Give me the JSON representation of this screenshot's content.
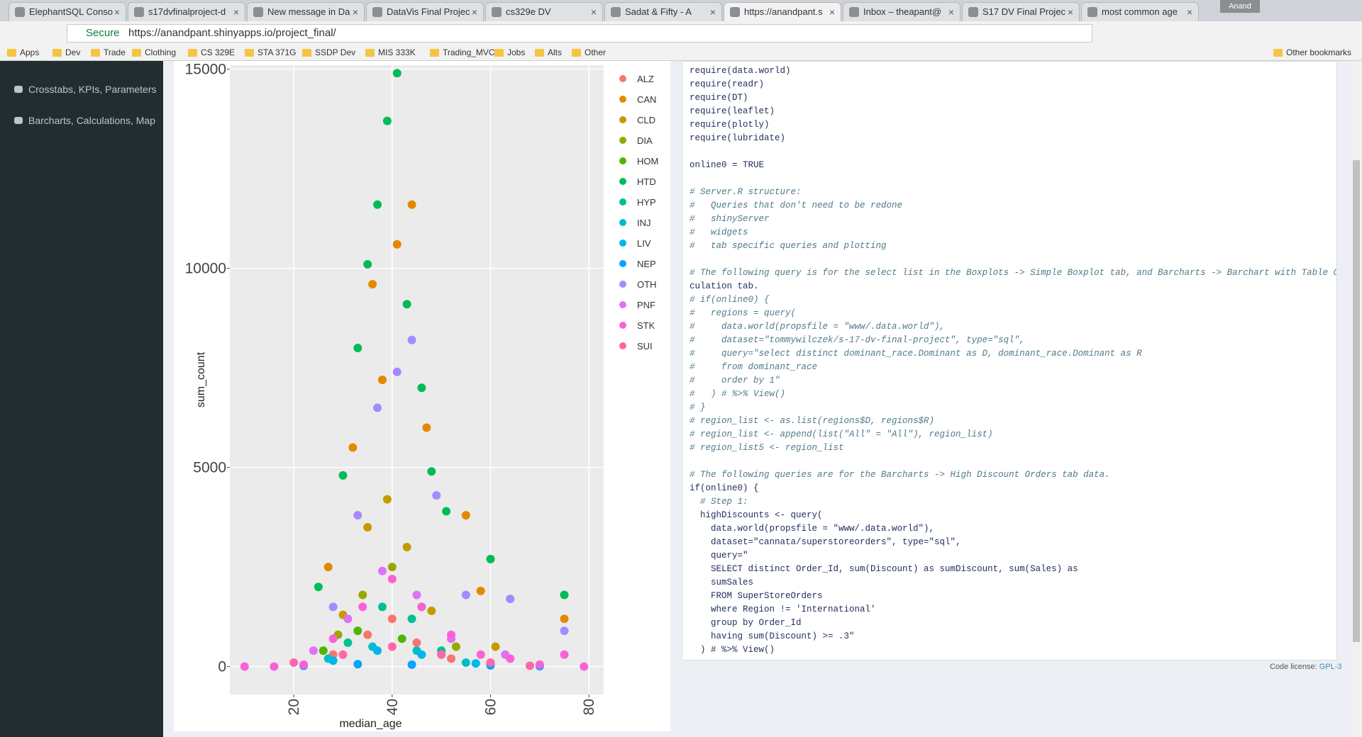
{
  "browser": {
    "tabs": [
      "ElephantSQL Conso",
      "s17dvfinalproject-d",
      "New message in Da",
      "DataVis Final Projec",
      "cs329e DV",
      "Sadat & Fifty - A",
      "https://anandpant.s",
      "Inbox – theapant@",
      "S17 DV Final Projec",
      "most common age"
    ],
    "profile": "Anand",
    "secure": "Secure",
    "url": "https://anandpant.shinyapps.io/project_final/",
    "bookmarks": [
      "Apps",
      "Dev",
      "Trade",
      "Clothing",
      "CS 329E",
      "STA 371G",
      "SSDP Dev",
      "MIS 333K",
      "Trading_MVC",
      "Jobs",
      "Alts",
      "Other"
    ],
    "other_bookmarks": "Other bookmarks"
  },
  "sidebar": {
    "items": [
      "Crosstabs, KPIs, Parameters",
      "Barcharts, Calculations, Map"
    ]
  },
  "chart_data": {
    "type": "scatter",
    "x_label": "median_age",
    "y_label": "sum_count",
    "xlim": [
      7,
      83
    ],
    "ylim": [
      -700,
      15100
    ],
    "xticks": [
      20,
      40,
      60,
      80
    ],
    "yticks": [
      0,
      5000,
      10000,
      15000
    ],
    "grid": true,
    "series": [
      {
        "name": "ALZ",
        "color": "#F8766D",
        "x": [
          28,
          35,
          40,
          45,
          52
        ],
        "values": [
          300,
          800,
          1200,
          600,
          200
        ]
      },
      {
        "name": "CAN",
        "color": "#E38900",
        "x": [
          27,
          32,
          36,
          38,
          41,
          44,
          47,
          55,
          58,
          75
        ],
        "values": [
          2500,
          5500,
          9600,
          7200,
          10600,
          11600,
          6000,
          3800,
          1900,
          1200
        ]
      },
      {
        "name": "CLD",
        "color": "#C49A00",
        "x": [
          30,
          35,
          39,
          43,
          48,
          61
        ],
        "values": [
          1300,
          3500,
          4200,
          3000,
          1400,
          500
        ]
      },
      {
        "name": "DIA",
        "color": "#99A800",
        "x": [
          29,
          34,
          40,
          46,
          53
        ],
        "values": [
          800,
          1800,
          2500,
          1500,
          500
        ]
      },
      {
        "name": "HOM",
        "color": "#53B400",
        "x": [
          26,
          33,
          42,
          50
        ],
        "values": [
          400,
          900,
          700,
          300
        ]
      },
      {
        "name": "HTD",
        "color": "#00BC56",
        "x": [
          25,
          30,
          33,
          35,
          37,
          39,
          41,
          43,
          46,
          48,
          51,
          60,
          75
        ],
        "values": [
          2000,
          4800,
          8000,
          10100,
          11600,
          13700,
          14900,
          9100,
          7000,
          4900,
          3900,
          2700,
          1800
        ]
      },
      {
        "name": "HYP",
        "color": "#00C094",
        "x": [
          31,
          38,
          44,
          50
        ],
        "values": [
          600,
          1500,
          1200,
          400
        ]
      },
      {
        "name": "INJ",
        "color": "#00BFC4",
        "x": [
          27,
          36,
          45,
          55
        ],
        "values": [
          200,
          500,
          400,
          100
        ]
      },
      {
        "name": "LIV",
        "color": "#00B6EB",
        "x": [
          28,
          37,
          46,
          57
        ],
        "values": [
          150,
          400,
          300,
          80
        ]
      },
      {
        "name": "NEP",
        "color": "#06A4FF",
        "x": [
          22,
          33,
          44,
          60,
          70
        ],
        "values": [
          20,
          60,
          50,
          30,
          10
        ]
      },
      {
        "name": "OTH",
        "color": "#A58AFF",
        "x": [
          28,
          33,
          37,
          41,
          44,
          49,
          55,
          64,
          75
        ],
        "values": [
          1500,
          3800,
          6500,
          7400,
          8200,
          4300,
          1800,
          1700,
          900
        ]
      },
      {
        "name": "PNF",
        "color": "#DF70F8",
        "x": [
          24,
          31,
          38,
          45,
          52,
          63
        ],
        "values": [
          400,
          1200,
          2400,
          1800,
          700,
          300
        ]
      },
      {
        "name": "STK",
        "color": "#FB61D7",
        "x": [
          10,
          16,
          22,
          28,
          34,
          40,
          46,
          52,
          58,
          64,
          70,
          75,
          79
        ],
        "values": [
          0,
          0,
          50,
          700,
          1500,
          2200,
          1500,
          800,
          300,
          200,
          50,
          300,
          0
        ]
      },
      {
        "name": "SUI",
        "color": "#FF66A8",
        "x": [
          20,
          30,
          40,
          50,
          60,
          68
        ],
        "values": [
          100,
          300,
          500,
          300,
          100,
          20
        ]
      }
    ]
  },
  "code": {
    "blocks": [
      [
        "require(data.world)",
        "require(readr)",
        "require(DT)",
        "require(leaflet)",
        "require(plotly)",
        "require(lubridate)"
      ],
      [
        "online0 = TRUE"
      ],
      [
        "# Server.R structure:",
        "#   Queries that don't need to be redone",
        "#   shinyServer",
        "#   widgets",
        "#   tab specific queries and plotting"
      ],
      [
        "# The following query is for the select list in the Boxplots -> Simple Boxplot tab, and Barcharts -> Barchart with Table Cal",
        "culation tab.",
        "# if(online0) {",
        "#   regions = query(",
        "#     data.world(propsfile = \"www/.data.world\"),",
        "#     dataset=\"tommywilczek/s-17-dv-final-project\", type=\"sql\",",
        "#     query=\"select distinct dominant_race.Dominant as D, dominant_race.Dominant as R",
        "#     from dominant_race",
        "#     order by 1\"",
        "#   ) # %>% View()",
        "# }",
        "# region_list <- as.list(regions$D, regions$R)",
        "# region_list <- append(list(\"All\" = \"All\"), region_list)",
        "# region_list5 <- region_list"
      ],
      [
        "# The following queries are for the Barcharts -> High Discount Orders tab data.",
        "if(online0) {",
        "  # Step 1:",
        "  highDiscounts <- query(",
        "    data.world(propsfile = \"www/.data.world\"),",
        "    dataset=\"cannata/superstoreorders\", type=\"sql\",",
        "    query=\"",
        "    SELECT distinct Order_Id, sum(Discount) as sumDiscount, sum(Sales) as",
        "    sumSales",
        "    FROM SuperStoreOrders",
        "    where Region != 'International'",
        "    group by Order_Id",
        "    having sum(Discount) >= .3\"",
        "  ) # %>% View()"
      ]
    ],
    "license": "Code license:",
    "license_link": "GPL-3"
  }
}
